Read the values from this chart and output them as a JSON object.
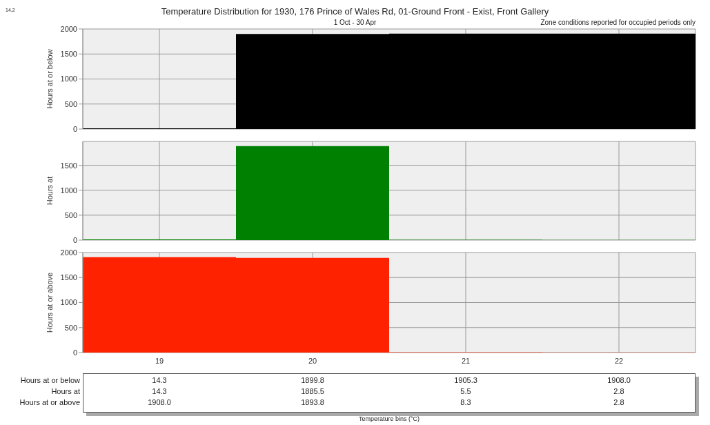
{
  "chart_data": [
    {
      "type": "bar",
      "title": "Temperature Distribution for 1930, 176 Prince of Wales Rd, 01-Ground Front - Exist, Front Gallery",
      "subtitle": "1 Oct - 30 Apr",
      "annotations": [
        "Zone conditions reported for occupied periods only",
        "14.2"
      ],
      "ylabel": "Hours at or below",
      "categories": [
        "19",
        "20",
        "21",
        "22"
      ],
      "series": [
        {
          "name": "Hours at or below",
          "color": "#000000",
          "values": [
            14.3,
            1899.8,
            1905.3,
            1908.0
          ],
          "value_labels": [
            "14.3",
            "1899.8",
            "1905.3",
            "1908.0"
          ]
        }
      ],
      "ylim": [
        0,
        2000
      ],
      "yticks": [
        0,
        500,
        1000,
        1500,
        2000
      ],
      "grid": true,
      "tick_labels": "y"
    },
    {
      "type": "bar",
      "ylabel": "Hours at",
      "categories": [
        "19",
        "20",
        "21",
        "22"
      ],
      "series": [
        {
          "name": "Hours at",
          "color": "#008000",
          "values": [
            14.3,
            1885.5,
            5.5,
            2.8
          ],
          "value_labels": [
            "14.3",
            "1885.5",
            "5.5",
            "2.8"
          ]
        }
      ],
      "ylim": [
        0,
        1980
      ],
      "yticks": [
        0,
        500,
        1000,
        1500
      ],
      "grid": true,
      "tick_labels": "y"
    },
    {
      "type": "bar",
      "ylabel": "Hours at or above",
      "xlabel": "Temperature bins (°C)",
      "categories": [
        "19",
        "20",
        "21",
        "22"
      ],
      "series": [
        {
          "name": "Hours at or above",
          "color": "#ff2200",
          "values": [
            1908.0,
            1893.8,
            8.3,
            2.8
          ],
          "value_labels": [
            "1908.0",
            "1893.8",
            "8.3",
            "2.8"
          ]
        }
      ],
      "ylim": [
        0,
        2000
      ],
      "yticks": [
        0,
        500,
        1000,
        1500,
        2000
      ],
      "grid": true
    }
  ]
}
